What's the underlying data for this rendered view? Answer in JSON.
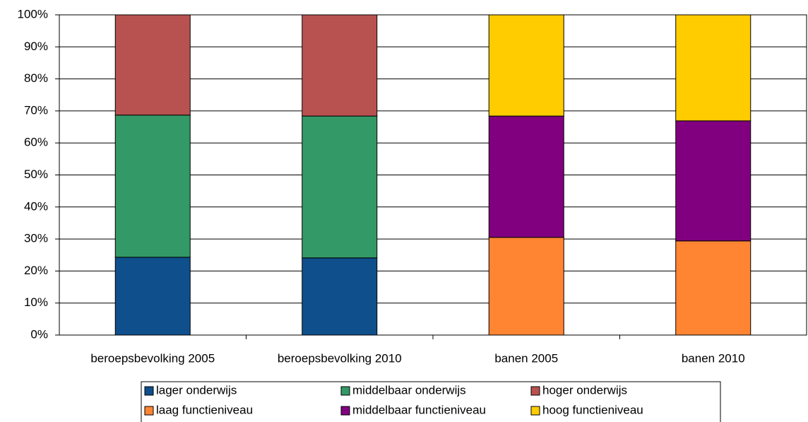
{
  "chart_data": {
    "type": "stacked-bar",
    "categories": [
      "beroepsbevolking 2005",
      "beroepsbevolking 2010",
      "banen 2005",
      "banen 2010"
    ],
    "series": [
      {
        "name": "lager onderwijs",
        "color": "#0f4f8c",
        "values": [
          24.3,
          24.1,
          null,
          null
        ]
      },
      {
        "name": "middelbaar onderwijs",
        "color": "#339966",
        "values": [
          44.4,
          44.3,
          null,
          null
        ]
      },
      {
        "name": "hoger onderwijs",
        "color": "#b85250",
        "values": [
          31.3,
          31.6,
          null,
          null
        ]
      },
      {
        "name": "laag functieniveau",
        "color": "#ff8533",
        "values": [
          null,
          null,
          30.5,
          29.4
        ]
      },
      {
        "name": "middelbaar functieniveau",
        "color": "#800080",
        "values": [
          null,
          null,
          37.9,
          37.5
        ]
      },
      {
        "name": "hoog functieniveau",
        "color": "#ffcc00",
        "values": [
          null,
          null,
          31.6,
          33.1
        ]
      }
    ],
    "ylim": [
      0,
      100
    ],
    "yticks": [
      {
        "value": 0,
        "label": "0%"
      },
      {
        "value": 10,
        "label": "10%"
      },
      {
        "value": 20,
        "label": "20%"
      },
      {
        "value": 30,
        "label": "30%"
      },
      {
        "value": 40,
        "label": "40%"
      },
      {
        "value": 50,
        "label": "50%"
      },
      {
        "value": 60,
        "label": "60%"
      },
      {
        "value": 70,
        "label": "70%"
      },
      {
        "value": 80,
        "label": "80%"
      },
      {
        "value": 90,
        "label": "90%"
      },
      {
        "value": 100,
        "label": "100%"
      }
    ],
    "grid": true
  }
}
